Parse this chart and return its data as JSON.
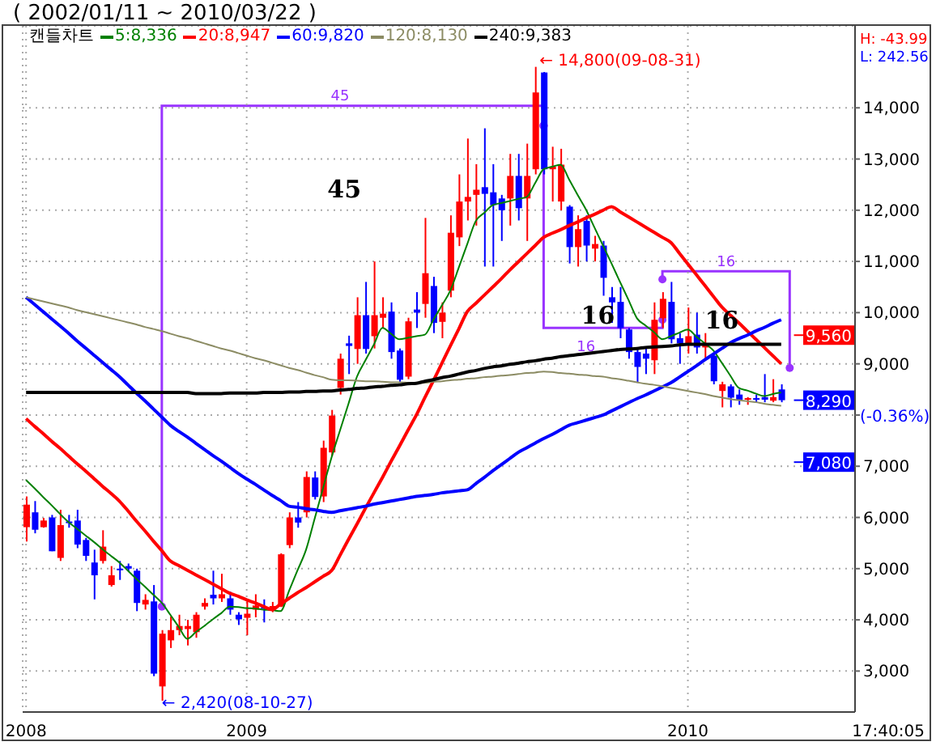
{
  "chart_data": {
    "type": "candlestick",
    "title": "( 2002/01/11 ~ 2010/03/22 )",
    "legend_title": "캔들차트",
    "legend": "top left",
    "grid": true,
    "categories": [
      "2008",
      null,
      null,
      null,
      null,
      null,
      null,
      null,
      null,
      null,
      null,
      null,
      null,
      null,
      null,
      null,
      null,
      null,
      null,
      null,
      null,
      null,
      null,
      null,
      null,
      null,
      "2009",
      null,
      null,
      null,
      null,
      null,
      null,
      null,
      null,
      null,
      null,
      null,
      null,
      null,
      null,
      null,
      null,
      null,
      null,
      null,
      null,
      null,
      null,
      null,
      null,
      null,
      null,
      null,
      null,
      null,
      null,
      null,
      null,
      null,
      null,
      null,
      null,
      null,
      null,
      null,
      null,
      null,
      null,
      null,
      null,
      null,
      null,
      null,
      null,
      null,
      null,
      null,
      "2010",
      null,
      null,
      null,
      null,
      null,
      null,
      null,
      null,
      null,
      null,
      null
    ],
    "ohlc": [
      [
        5810,
        6410,
        5530,
        6250
      ],
      [
        6100,
        6320,
        5690,
        5760
      ],
      [
        5810,
        5990,
        5800,
        5940
      ],
      [
        6000,
        6050,
        5340,
        5340
      ],
      [
        5210,
        6150,
        5150,
        5850
      ],
      [
        5920,
        6050,
        5800,
        5900
      ],
      [
        5940,
        6150,
        5400,
        5470
      ],
      [
        5560,
        5600,
        5150,
        5250
      ],
      [
        5120,
        5370,
        4400,
        4870
      ],
      [
        5150,
        5750,
        5100,
        5430
      ],
      [
        4680,
        5050,
        4650,
        4870
      ],
      [
        5000,
        5150,
        4780,
        4980
      ],
      [
        5050,
        5100,
        4950,
        5000
      ],
      [
        4960,
        5000,
        4170,
        4330
      ],
      [
        4300,
        4500,
        4200,
        4390
      ],
      [
        4360,
        4680,
        2900,
        2950
      ],
      [
        2700,
        3800,
        2420,
        3730
      ],
      [
        3600,
        4070,
        3450,
        3800
      ],
      [
        3800,
        4100,
        3700,
        3880
      ],
      [
        3820,
        4000,
        3500,
        3880
      ],
      [
        3760,
        4150,
        3650,
        4100
      ],
      [
        4260,
        4420,
        4200,
        4330
      ],
      [
        4490,
        4960,
        4300,
        4420
      ],
      [
        4420,
        4900,
        4350,
        4500
      ],
      [
        4420,
        4550,
        4100,
        4200
      ],
      [
        4100,
        4150,
        3900,
        4010
      ],
      [
        4040,
        4400,
        3700,
        4120
      ],
      [
        4200,
        4500,
        4050,
        4280
      ],
      [
        4250,
        4400,
        3950,
        4220
      ],
      [
        4200,
        4350,
        4150,
        4270
      ],
      [
        4260,
        5300,
        4250,
        5280
      ],
      [
        5460,
        6100,
        5400,
        6000
      ],
      [
        6000,
        6300,
        5800,
        5900
      ],
      [
        6100,
        6900,
        6000,
        6790
      ],
      [
        6780,
        6900,
        6350,
        6400
      ],
      [
        6410,
        7500,
        6300,
        7360
      ],
      [
        7270,
        8100,
        7200,
        7990
      ],
      [
        8530,
        9200,
        8400,
        9100
      ],
      [
        9400,
        9550,
        8800,
        9350
      ],
      [
        9290,
        10300,
        9000,
        9950
      ],
      [
        9950,
        10600,
        9200,
        9290
      ],
      [
        9540,
        11000,
        9300,
        9950
      ],
      [
        9900,
        10300,
        9700,
        9980
      ],
      [
        10020,
        10200,
        9100,
        9230
      ],
      [
        9260,
        9300,
        8650,
        8690
      ],
      [
        8750,
        9900,
        8700,
        9830
      ],
      [
        10060,
        10400,
        9700,
        10000
      ],
      [
        10170,
        11850,
        9900,
        10770
      ],
      [
        10520,
        10700,
        9600,
        9800
      ],
      [
        9820,
        10200,
        9500,
        10000
      ],
      [
        10430,
        11900,
        10300,
        11560
      ],
      [
        11470,
        12700,
        11300,
        12170
      ],
      [
        12170,
        13400,
        11800,
        12260
      ],
      [
        12300,
        12900,
        11700,
        12400
      ],
      [
        12450,
        13600,
        10900,
        12320
      ],
      [
        12350,
        12900,
        10900,
        12100
      ],
      [
        12230,
        12300,
        11400,
        12000
      ],
      [
        12230,
        13100,
        11700,
        12670
      ],
      [
        12670,
        13100,
        11800,
        12040
      ],
      [
        12230,
        13300,
        11400,
        12670
      ],
      [
        12800,
        14800,
        12700,
        14300
      ],
      [
        14690,
        14700,
        12700,
        12800
      ],
      [
        12800,
        13240,
        12170,
        12850
      ],
      [
        12170,
        13200,
        12000,
        12890
      ],
      [
        12070,
        12100,
        10960,
        11280
      ],
      [
        11280,
        11900,
        10900,
        11630
      ],
      [
        11790,
        11900,
        11000,
        11310
      ],
      [
        11250,
        11500,
        11000,
        11340
      ],
      [
        11310,
        11400,
        10330,
        10680
      ],
      [
        10300,
        10500,
        9800,
        10200
      ],
      [
        10210,
        10500,
        9500,
        9700
      ],
      [
        9670,
        9700,
        9100,
        9230
      ],
      [
        9230,
        9300,
        8630,
        8940
      ],
      [
        9200,
        9300,
        8800,
        9100
      ],
      [
        9070,
        10200,
        8800,
        9860
      ],
      [
        9890,
        10400,
        9700,
        10270
      ],
      [
        10210,
        10600,
        9400,
        9480
      ],
      [
        9500,
        9600,
        9000,
        9400
      ],
      [
        9380,
        10100,
        9200,
        9540
      ],
      [
        9570,
        10000,
        9200,
        9320
      ],
      [
        9320,
        9600,
        9100,
        9400
      ],
      [
        9160,
        9200,
        8600,
        8660
      ],
      [
        8470,
        8650,
        8150,
        8600
      ],
      [
        8560,
        8600,
        8150,
        8340
      ],
      [
        8400,
        8500,
        8200,
        8300
      ],
      [
        8300,
        8350,
        8200,
        8330
      ],
      [
        8330,
        8400,
        8250,
        8300
      ],
      [
        8350,
        8800,
        8250,
        8300
      ],
      [
        8280,
        8700,
        8250,
        8350
      ],
      [
        8500,
        8600,
        8250,
        8290
      ]
    ],
    "series": [
      {
        "name": "5:8,336",
        "type": "line",
        "color": "#008000",
        "values": [
          6730,
          6570,
          6400,
          6240,
          6070,
          5910,
          5780,
          5650,
          5520,
          5380,
          5250,
          5120,
          4960,
          4800,
          4650,
          4490,
          4330,
          4100,
          3860,
          3630,
          3760,
          3880,
          4010,
          4130,
          4260,
          4250,
          4230,
          4220,
          4200,
          4190,
          4170,
          4570,
          4970,
          5370,
          5970,
          6570,
          7170,
          7700,
          8220,
          8750,
          9070,
          9380,
          9700,
          9590,
          9480,
          9510,
          9540,
          9570,
          9860,
          10140,
          10430,
          10880,
          11340,
          11790,
          11950,
          12100,
          12140,
          12180,
          12220,
          12260,
          12530,
          12800,
          12850,
          12890,
          12600,
          12300,
          12010,
          11660,
          11310,
          10960,
          10600,
          10250,
          9890,
          9750,
          9620,
          9480,
          9540,
          9610,
          9670,
          9530,
          9400,
          9260,
          9020,
          8770,
          8530,
          8480,
          8420,
          8370,
          8410,
          8440
        ]
      },
      {
        "name": "20:8,947",
        "type": "line",
        "color": "#ff0000",
        "values": [
          7930,
          7780,
          7640,
          7490,
          7350,
          7200,
          7050,
          6910,
          6760,
          6610,
          6470,
          6320,
          6130,
          5930,
          5740,
          5540,
          5350,
          5150,
          5060,
          4970,
          4880,
          4790,
          4700,
          4610,
          4520,
          4460,
          4390,
          4330,
          4260,
          4200,
          4310,
          4420,
          4530,
          4630,
          4740,
          4850,
          4960,
          5260,
          5570,
          5870,
          6180,
          6480,
          6780,
          7090,
          7390,
          7700,
          8000,
          8340,
          8670,
          9010,
          9350,
          9680,
          10020,
          10180,
          10340,
          10500,
          10660,
          10830,
          10990,
          11150,
          11310,
          11470,
          11550,
          11620,
          11700,
          11770,
          11850,
          11920,
          12000,
          12070,
          11970,
          11870,
          11770,
          11670,
          11570,
          11470,
          11370,
          11160,
          10950,
          10740,
          10530,
          10320,
          10110,
          9950,
          9800,
          9640,
          9480,
          9320,
          9160,
          9000
        ]
      },
      {
        "name": "60:9,820",
        "type": "line",
        "color": "#0000ff",
        "values": [
          10300,
          10160,
          10020,
          9880,
          9740,
          9600,
          9450,
          9310,
          9170,
          9030,
          8890,
          8750,
          8590,
          8430,
          8280,
          8120,
          7960,
          7800,
          7680,
          7570,
          7450,
          7330,
          7210,
          7100,
          6980,
          6860,
          6750,
          6650,
          6540,
          6430,
          6330,
          6220,
          6200,
          6170,
          6150,
          6120,
          6100,
          6130,
          6160,
          6190,
          6220,
          6260,
          6290,
          6320,
          6350,
          6380,
          6410,
          6430,
          6450,
          6480,
          6500,
          6520,
          6540,
          6660,
          6780,
          6910,
          7030,
          7150,
          7270,
          7360,
          7450,
          7540,
          7620,
          7710,
          7800,
          7850,
          7900,
          7950,
          8000,
          8080,
          8160,
          8240,
          8320,
          8390,
          8470,
          8550,
          8630,
          8740,
          8850,
          8960,
          9080,
          9190,
          9300,
          9410,
          9490,
          9560,
          9640,
          9710,
          9790,
          9860
        ]
      },
      {
        "name": "120:8,130",
        "type": "line",
        "color": "#8c8c64",
        "values": [
          10300,
          10260,
          10220,
          10180,
          10140,
          10100,
          10050,
          10010,
          9970,
          9930,
          9890,
          9850,
          9810,
          9770,
          9720,
          9680,
          9640,
          9590,
          9540,
          9500,
          9450,
          9400,
          9350,
          9300,
          9260,
          9210,
          9160,
          9110,
          9070,
          9020,
          8970,
          8920,
          8880,
          8830,
          8780,
          8740,
          8690,
          8680,
          8680,
          8670,
          8660,
          8660,
          8650,
          8640,
          8640,
          8630,
          8620,
          8630,
          8650,
          8660,
          8680,
          8690,
          8710,
          8720,
          8740,
          8750,
          8770,
          8780,
          8800,
          8820,
          8830,
          8850,
          8840,
          8820,
          8810,
          8790,
          8780,
          8760,
          8750,
          8720,
          8700,
          8670,
          8640,
          8610,
          8590,
          8560,
          8530,
          8500,
          8470,
          8440,
          8410,
          8370,
          8340,
          8310,
          8290,
          8270,
          8250,
          8220,
          8200,
          8180
        ]
      },
      {
        "name": "240:9,383",
        "type": "line",
        "color": "#000000",
        "values": [
          8440,
          8440,
          8440,
          8440,
          8440,
          8440,
          8440,
          8440,
          8440,
          8440,
          8440,
          8440,
          8440,
          8440,
          8440,
          8440,
          8440,
          8440,
          8440,
          8440,
          8420,
          8420,
          8420,
          8420,
          8430,
          8430,
          8430,
          8430,
          8440,
          8440,
          8440,
          8450,
          8450,
          8460,
          8460,
          8470,
          8470,
          8490,
          8500,
          8520,
          8530,
          8550,
          8560,
          8580,
          8590,
          8610,
          8620,
          8660,
          8690,
          8730,
          8760,
          8800,
          8840,
          8870,
          8910,
          8940,
          8960,
          8990,
          9010,
          9040,
          9060,
          9090,
          9110,
          9140,
          9160,
          9180,
          9200,
          9220,
          9240,
          9260,
          9280,
          9290,
          9300,
          9320,
          9330,
          9340,
          9350,
          9370,
          9380,
          9380,
          9380,
          9380,
          9380,
          9380,
          9380,
          9380,
          9380,
          9380,
          9380,
          9380
        ]
      }
    ],
    "ylim": [
      2200,
      15600
    ],
    "yticks": [
      {
        "value": 3000,
        "label": "3,000"
      },
      {
        "value": 4000,
        "label": "4,000"
      },
      {
        "value": 5000,
        "label": "5,000"
      },
      {
        "value": 6000,
        "label": "6,000"
      },
      {
        "value": 7000,
        "label": "7,000"
      },
      {
        "value": 8000,
        "label": null
      },
      {
        "value": 9000,
        "label": "9,000"
      },
      {
        "value": 10000,
        "label": "10,000"
      },
      {
        "value": 11000,
        "label": "11,000"
      },
      {
        "value": 12000,
        "label": "12,000"
      },
      {
        "value": 13000,
        "label": "13,000"
      },
      {
        "value": 14000,
        "label": "14,000"
      }
    ],
    "ref_lines": [
      {
        "axis": "y",
        "value": 9560,
        "label": "9,560",
        "color": "#ff0000"
      },
      {
        "axis": "y",
        "value": 8290,
        "label": "8,290",
        "color": "#0000ff"
      },
      {
        "axis": "y",
        "value": 7080,
        "label": "7,080",
        "color": "#0000ff"
      }
    ],
    "annotations": [
      "← 14,800(09-08-31)",
      "← 2,420(08-10-27)",
      "45",
      "45",
      "16",
      "16",
      "16",
      "16",
      "H: -43.99",
      "L: 242.56",
      "(-0.36%)",
      "17:40:05"
    ]
  }
}
